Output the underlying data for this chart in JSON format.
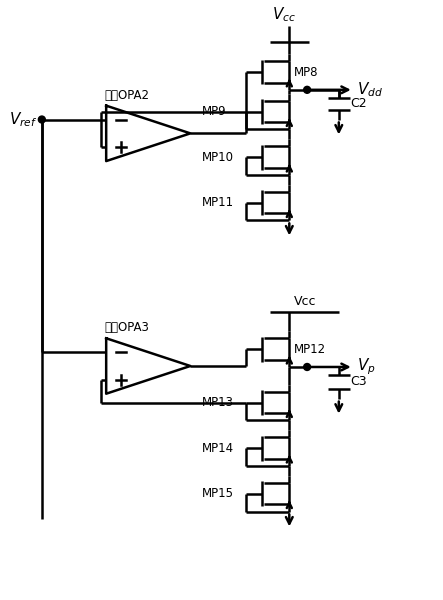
{
  "background_color": "#ffffff",
  "line_color": "#000000",
  "lw": 1.8,
  "labels": {
    "Vcc_top": "$V_{cc}$",
    "Vcc_mid": "Vcc",
    "Vdd": "$V_{dd}$",
    "Vp": "$V_{p}$",
    "Vref": "$V_{ref}$",
    "OPA2": "运放OPA2",
    "OPA3": "运放OPA3",
    "MP8": "MP8",
    "MP9": "MP9",
    "MP10": "MP10",
    "MP11": "MP11",
    "MP12": "MP12",
    "MP13": "MP13",
    "MP14": "MP14",
    "MP15": "MP15",
    "C2": "C2",
    "C3": "C3"
  },
  "figsize": [
    4.43,
    6.0
  ],
  "dpi": 100
}
